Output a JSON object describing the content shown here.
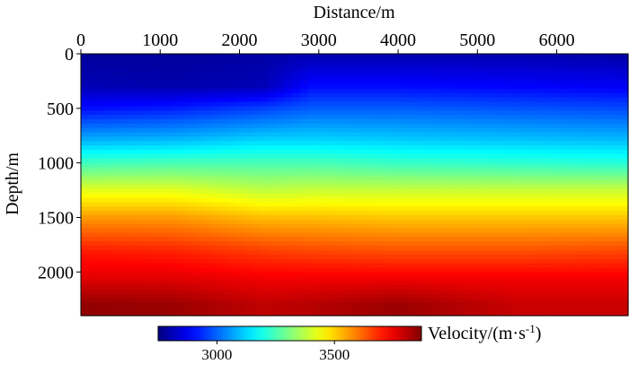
{
  "chart_data": {
    "type": "heatmap",
    "title": "",
    "xlabel": "Distance/m",
    "ylabel": "Depth/m",
    "xlim": [
      0,
      6900
    ],
    "ylim": [
      2400,
      0
    ],
    "xticks": [
      0,
      1000,
      2000,
      3000,
      4000,
      5000,
      6000
    ],
    "yticks": [
      0,
      500,
      1000,
      1500,
      2000
    ],
    "colorbar": {
      "label_main": "Velocity/(m·s",
      "label_sup": "-1",
      "label_close": ")",
      "range": [
        2750,
        3870
      ],
      "ticks": [
        3000,
        3500
      ],
      "colormap": "jet",
      "placement": "bottom"
    },
    "x": [
      0,
      1150,
      2300,
      2900,
      4000,
      5500,
      6900
    ],
    "depth_profiles": [
      {
        "x": 0,
        "depth": [
          0,
          300,
          500,
          800,
          1000,
          1250,
          1500,
          1800,
          2050,
          2300
        ],
        "velocity": [
          2780,
          2810,
          2900,
          3090,
          3240,
          3420,
          3560,
          3700,
          3760,
          3850
        ]
      },
      {
        "x": 1150,
        "depth": [
          0,
          300,
          500,
          800,
          1000,
          1250,
          1500,
          1800,
          2050,
          2300
        ],
        "velocity": [
          2780,
          2800,
          2920,
          3100,
          3250,
          3420,
          3560,
          3690,
          3760,
          3840
        ]
      },
      {
        "x": 2300,
        "depth": [
          0,
          300,
          500,
          800,
          1000,
          1250,
          1500,
          1800,
          2050,
          2300
        ],
        "velocity": [
          2790,
          2810,
          2960,
          3130,
          3250,
          3380,
          3520,
          3660,
          3740,
          3800
        ]
      },
      {
        "x": 2900,
        "depth": [
          0,
          300,
          500,
          800,
          1000,
          1250,
          1500,
          1800,
          2050,
          2300
        ],
        "velocity": [
          2800,
          2900,
          2990,
          3130,
          3250,
          3390,
          3520,
          3650,
          3740,
          3810
        ]
      },
      {
        "x": 4000,
        "depth": [
          0,
          300,
          500,
          800,
          1000,
          1250,
          1500,
          1800,
          2050,
          2300
        ],
        "velocity": [
          2800,
          2900,
          2990,
          3120,
          3230,
          3390,
          3510,
          3640,
          3740,
          3840
        ]
      },
      {
        "x": 5500,
        "depth": [
          0,
          300,
          500,
          800,
          1000,
          1250,
          1500,
          1800,
          2050,
          2300
        ],
        "velocity": [
          2800,
          2890,
          2980,
          3110,
          3220,
          3390,
          3510,
          3640,
          3740,
          3790
        ]
      },
      {
        "x": 6900,
        "depth": [
          0,
          300,
          500,
          800,
          1000,
          1250,
          1500,
          1800,
          2050,
          2300
        ],
        "velocity": [
          2790,
          2880,
          2970,
          3100,
          3210,
          3390,
          3510,
          3650,
          3740,
          3790
        ]
      }
    ]
  }
}
